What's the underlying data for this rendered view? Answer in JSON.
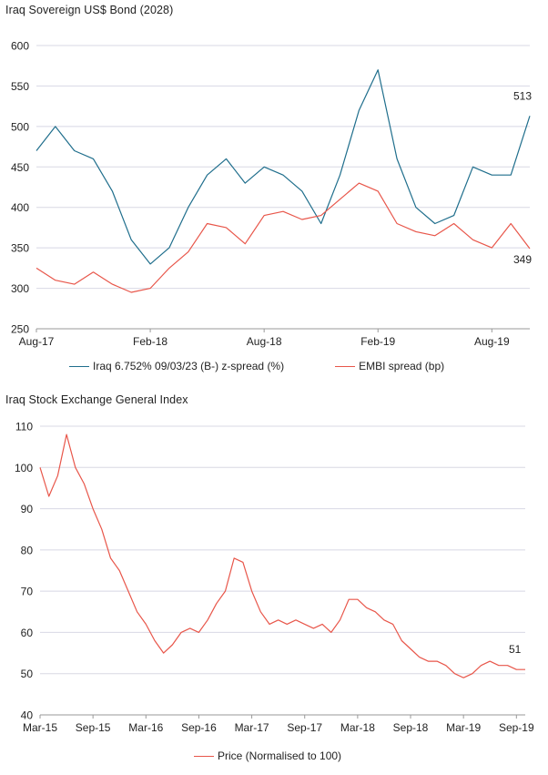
{
  "chart_data": [
    {
      "type": "line",
      "title": "Iraq Sovereign US$ Bond (2028)",
      "ylim": [
        250,
        600
      ],
      "y_ticks": [
        "250",
        "300",
        "350",
        "400",
        "450",
        "500",
        "550",
        "600"
      ],
      "x_ticks": [
        "Aug-17",
        "Feb-18",
        "Aug-18",
        "Feb-19",
        "Aug-19"
      ],
      "x_range": [
        "2017-08",
        "2019-10"
      ],
      "grid": "horizontal",
      "legend_position": "bottom",
      "end_labels": [
        "513",
        "349"
      ],
      "series": [
        {
          "name": "Iraq 6.752% 09/03/23 (B-) z-spread (%)",
          "color": "#1f6e8c",
          "x": [
            "2017-08",
            "2017-09",
            "2017-10",
            "2017-11",
            "2017-12",
            "2018-01",
            "2018-02",
            "2018-03",
            "2018-04",
            "2018-05",
            "2018-06",
            "2018-07",
            "2018-08",
            "2018-09",
            "2018-10",
            "2018-11",
            "2018-12",
            "2019-01",
            "2019-02",
            "2019-03",
            "2019-04",
            "2019-05",
            "2019-06",
            "2019-07",
            "2019-08",
            "2019-09",
            "2019-10"
          ],
          "values": [
            470,
            500,
            470,
            460,
            420,
            360,
            330,
            350,
            400,
            440,
            460,
            430,
            450,
            440,
            420,
            380,
            440,
            520,
            570,
            460,
            400,
            380,
            390,
            450,
            440,
            440,
            513
          ]
        },
        {
          "name": "EMBI spread (bp)",
          "color": "#e8564a",
          "x": [
            "2017-08",
            "2017-09",
            "2017-10",
            "2017-11",
            "2017-12",
            "2018-01",
            "2018-02",
            "2018-03",
            "2018-04",
            "2018-05",
            "2018-06",
            "2018-07",
            "2018-08",
            "2018-09",
            "2018-10",
            "2018-11",
            "2018-12",
            "2019-01",
            "2019-02",
            "2019-03",
            "2019-04",
            "2019-05",
            "2019-06",
            "2019-07",
            "2019-08",
            "2019-09",
            "2019-10"
          ],
          "values": [
            325,
            310,
            305,
            320,
            305,
            295,
            300,
            325,
            345,
            380,
            375,
            355,
            390,
            395,
            385,
            390,
            410,
            430,
            420,
            380,
            370,
            365,
            380,
            360,
            350,
            380,
            349
          ]
        }
      ]
    },
    {
      "type": "line",
      "title": "Iraq Stock Exchange General Index",
      "ylim": [
        40,
        110
      ],
      "y_ticks": [
        "40",
        "50",
        "60",
        "70",
        "80",
        "90",
        "100",
        "110"
      ],
      "x_ticks": [
        "Mar-15",
        "Sep-15",
        "Mar-16",
        "Sep-16",
        "Mar-17",
        "Sep-17",
        "Mar-18",
        "Sep-18",
        "Mar-19",
        "Sep-19"
      ],
      "x_range": [
        "2015-03",
        "2019-10"
      ],
      "grid": "horizontal",
      "legend_position": "bottom",
      "end_labels": [
        "51"
      ],
      "series": [
        {
          "name": "Price (Normalised to 100)",
          "color": "#e8564a",
          "x": [
            "2015-03",
            "2015-04",
            "2015-05",
            "2015-06",
            "2015-07",
            "2015-08",
            "2015-09",
            "2015-10",
            "2015-11",
            "2015-12",
            "2016-01",
            "2016-02",
            "2016-03",
            "2016-04",
            "2016-05",
            "2016-06",
            "2016-07",
            "2016-08",
            "2016-09",
            "2016-10",
            "2016-11",
            "2016-12",
            "2017-01",
            "2017-02",
            "2017-03",
            "2017-04",
            "2017-05",
            "2017-06",
            "2017-07",
            "2017-08",
            "2017-09",
            "2017-10",
            "2017-11",
            "2017-12",
            "2018-01",
            "2018-02",
            "2018-03",
            "2018-04",
            "2018-05",
            "2018-06",
            "2018-07",
            "2018-08",
            "2018-09",
            "2018-10",
            "2018-11",
            "2018-12",
            "2019-01",
            "2019-02",
            "2019-03",
            "2019-04",
            "2019-05",
            "2019-06",
            "2019-07",
            "2019-08",
            "2019-09",
            "2019-10"
          ],
          "values": [
            100,
            93,
            98,
            108,
            100,
            96,
            90,
            85,
            78,
            75,
            70,
            65,
            62,
            58,
            55,
            57,
            60,
            61,
            60,
            63,
            67,
            70,
            78,
            77,
            70,
            65,
            62,
            63,
            62,
            63,
            62,
            61,
            62,
            60,
            63,
            68,
            68,
            66,
            65,
            63,
            62,
            58,
            56,
            54,
            53,
            53,
            52,
            50,
            49,
            50,
            52,
            53,
            52,
            52,
            51,
            51
          ]
        }
      ]
    }
  ]
}
